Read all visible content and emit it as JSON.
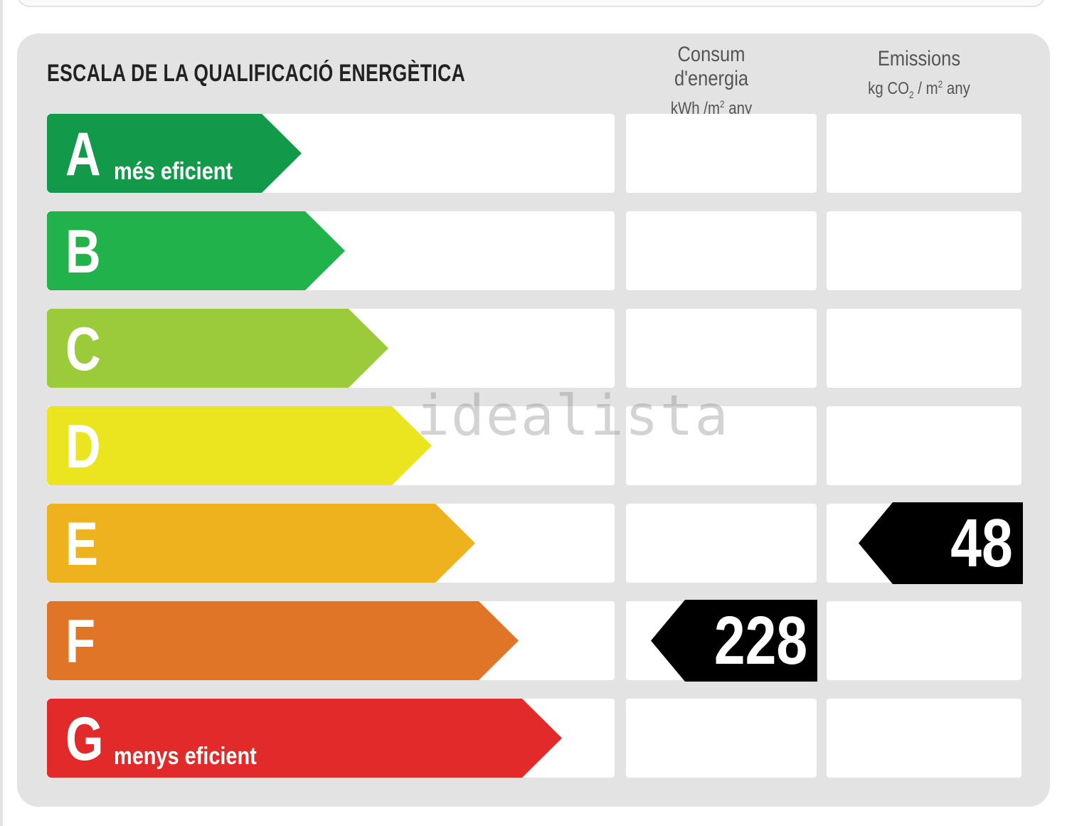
{
  "title": "ESCALA DE LA QUALIFICACIÓ ENERGÈTICA",
  "columns": {
    "consum": {
      "label": "Consum d'energia",
      "unit_prefix": "kWh /m",
      "unit_sup": "2",
      "unit_suffix": " any"
    },
    "emissions": {
      "label": "Emissions",
      "unit_prefix": "kg CO",
      "unit_sub": "2",
      "unit_mid": " / m",
      "unit_sup": "2",
      "unit_suffix": " any"
    }
  },
  "ratings": [
    {
      "letter": "A",
      "sublabel": "més eficient",
      "color": "#13994a"
    },
    {
      "letter": "B",
      "sublabel": "",
      "color": "#22b24c"
    },
    {
      "letter": "C",
      "sublabel": "",
      "color": "#9bcb3b"
    },
    {
      "letter": "D",
      "sublabel": "",
      "color": "#ebe520"
    },
    {
      "letter": "E",
      "sublabel": "",
      "color": "#efb21f"
    },
    {
      "letter": "F",
      "sublabel": "",
      "color": "#e07427"
    },
    {
      "letter": "G",
      "sublabel": "menys eficient",
      "color": "#e22a2a"
    }
  ],
  "consumption": {
    "value": "228",
    "rating": "F"
  },
  "emissions": {
    "value": "48",
    "rating": "E"
  },
  "watermark": "idealista"
}
